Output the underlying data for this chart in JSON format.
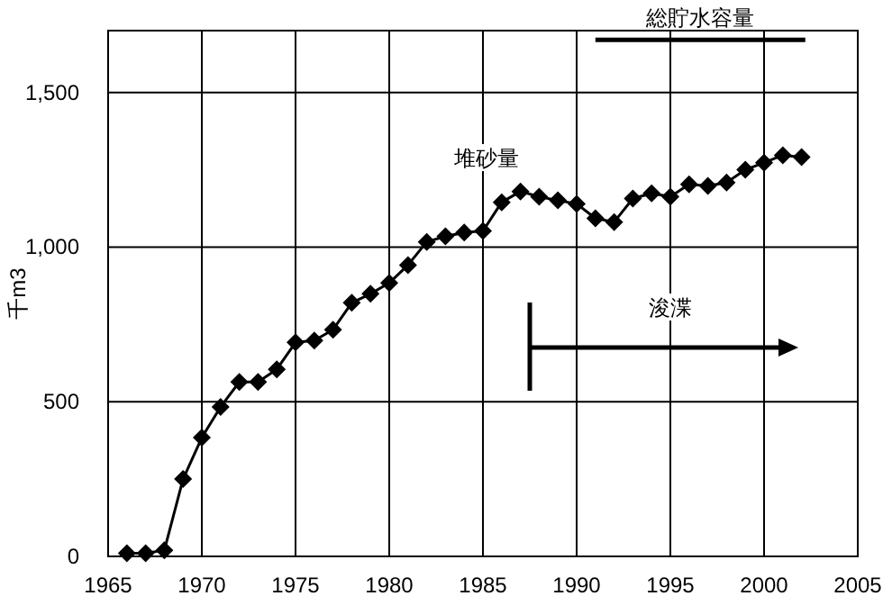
{
  "chart_data": {
    "type": "line",
    "ylabel": "千m3",
    "xlim": [
      1965,
      2005
    ],
    "ylim": [
      0,
      1700
    ],
    "xticks": [
      1965,
      1970,
      1975,
      1980,
      1985,
      1990,
      1995,
      2000,
      2005
    ],
    "yticks": [
      0,
      500,
      {
        "value": 1000,
        "label": "1,000"
      },
      {
        "value": 1500,
        "label": "1,500"
      }
    ],
    "grid": true,
    "series": [
      {
        "color": "#000000",
        "marker": "diamond",
        "x": [
          1966,
          1967,
          1968,
          1969,
          1970,
          1971,
          1972,
          1973,
          1974,
          1975,
          1976,
          1977,
          1978,
          1979,
          1980,
          1981,
          1982,
          1983,
          1984,
          1985,
          1986,
          1987,
          1988,
          1989,
          1990,
          1991,
          1992,
          1993,
          1994,
          1995,
          1996,
          1997,
          1998,
          1999,
          2000,
          2001,
          2002
        ],
        "values": [
          10,
          10,
          20,
          250,
          384,
          483,
          564,
          564,
          605,
          692,
          698,
          733,
          820,
          849,
          884,
          942,
          1017,
          1035,
          1047,
          1052,
          1145,
          1180,
          1163,
          1151,
          1140,
          1093,
          1081,
          1157,
          1174,
          1163,
          1203,
          1198,
          1209,
          1250,
          1273,
          1297,
          1291
        ]
      },
      {
        "name": "総貯水容量",
        "color": "#000000",
        "marker": "none",
        "x": [
          1991,
          2002.2
        ],
        "values": [
          1670,
          1670
        ]
      }
    ],
    "annotations": [
      "堆砂量",
      "浚渫"
    ]
  }
}
